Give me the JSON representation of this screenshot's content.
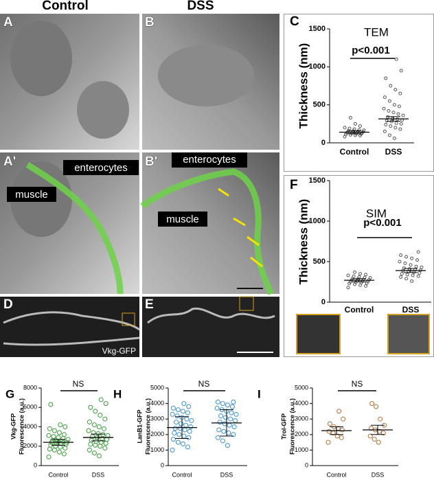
{
  "figure": {
    "headers": [
      "Control",
      "DSS"
    ],
    "panels": [
      "A",
      "B",
      "A'",
      "B'",
      "D",
      "E"
    ],
    "labels": [
      "enterocytes",
      "muscle",
      "enterocytes",
      "muscle",
      "Vkg-GFP"
    ]
  },
  "chart_data": [
    {
      "type": "strip",
      "panel": "C",
      "title": "TEM",
      "ylabel": [
        "Thickness (nm)"
      ],
      "annotation": "p<0.001",
      "categories": [
        "Control",
        "DSS"
      ],
      "color": "#555555",
      "values": [
        [
          80,
          95,
          100,
          105,
          110,
          115,
          120,
          125,
          130,
          130,
          135,
          140,
          140,
          145,
          150,
          155,
          160,
          165,
          170,
          180,
          190,
          200,
          220,
          250,
          330
        ],
        [
          60,
          100,
          150,
          180,
          200,
          220,
          240,
          250,
          260,
          280,
          290,
          300,
          310,
          320,
          340,
          360,
          380,
          400,
          420,
          450,
          480,
          500,
          550,
          600,
          650,
          700,
          750,
          850,
          950,
          1100
        ]
      ],
      "means": [
        140,
        315
      ],
      "errors": [
        20,
        30
      ],
      "ylim": [
        0,
        1500
      ],
      "yticks": [
        0,
        500,
        1000,
        1500
      ]
    },
    {
      "type": "strip",
      "panel": "F",
      "title": "SIM",
      "ylabel": [
        "Thickness (nm)"
      ],
      "annotation": "p<0.001",
      "categories": [
        "Control",
        "DSS"
      ],
      "color": "#555555",
      "values": [
        [
          180,
          200,
          210,
          220,
          230,
          235,
          240,
          245,
          250,
          255,
          260,
          265,
          270,
          275,
          280,
          285,
          290,
          300,
          305,
          310,
          320,
          330,
          340,
          350,
          370
        ],
        [
          260,
          290,
          310,
          320,
          330,
          340,
          350,
          360,
          370,
          380,
          390,
          395,
          400,
          410,
          420,
          430,
          440,
          460,
          480,
          500,
          520,
          540,
          560,
          580,
          620
        ]
      ],
      "means": [
        270,
        390
      ],
      "errors": [
        20,
        25
      ],
      "ylim": [
        0,
        1500
      ],
      "yticks": [
        0,
        500,
        1000,
        1500
      ]
    },
    {
      "type": "strip",
      "panel": "G",
      "ylabel": [
        "Vkg-GFP",
        "Fluorescence (a.u.)"
      ],
      "annotation": "NS",
      "categories": [
        "Control",
        "DSS"
      ],
      "color": "#3a9a3a",
      "values": [
        [
          900,
          1200,
          1400,
          1600,
          1700,
          1800,
          1900,
          2000,
          2100,
          2200,
          2300,
          2300,
          2400,
          2400,
          2500,
          2500,
          2600,
          2700,
          2800,
          2900,
          3000,
          3100,
          3200,
          3400,
          3600,
          3800,
          4000,
          4200,
          2600,
          6300
        ],
        [
          1000,
          1300,
          1600,
          1800,
          2000,
          2100,
          2200,
          2300,
          2400,
          2500,
          2600,
          2700,
          2800,
          2900,
          3000,
          3100,
          3200,
          3300,
          3400,
          3600,
          3800,
          4000,
          4200,
          4500,
          4800,
          5200,
          5600,
          6000,
          6400,
          6800
        ]
      ],
      "means": [
        2400,
        2900
      ],
      "errors": [
        300,
        350
      ],
      "ylim": [
        0,
        8000
      ],
      "yticks": [
        0,
        2000,
        4000,
        6000,
        8000
      ]
    },
    {
      "type": "strip",
      "panel": "H",
      "ylabel": [
        "LanB1-GFP",
        "Fluorescence (a.u.)"
      ],
      "annotation": "NS",
      "categories": [
        "Control",
        "DSS"
      ],
      "color": "#3a8fd0",
      "values": [
        [
          1000,
          1200,
          1400,
          1500,
          1700,
          1800,
          1900,
          2000,
          2100,
          2200,
          2300,
          2400,
          2400,
          2500,
          2600,
          2700,
          2800,
          2900,
          3000,
          3100,
          3200,
          3300,
          3400,
          3500,
          3600,
          3700,
          3800,
          4000
        ],
        [
          1300,
          1600,
          1800,
          2000,
          2100,
          2200,
          2300,
          2500,
          2600,
          2700,
          2800,
          2900,
          3000,
          3100,
          3200,
          3300,
          3400,
          3500,
          3600,
          3700,
          3800,
          3900,
          4000,
          4100,
          4100
        ]
      ],
      "means": [
        2450,
        2750
      ],
      "errors": [
        700,
        850
      ],
      "ylim": [
        0,
        5000
      ],
      "yticks": [
        0,
        1000,
        2000,
        3000,
        4000,
        5000
      ]
    },
    {
      "type": "strip",
      "panel": "I",
      "ylabel": [
        "Trol-GFP",
        "Fluorescence (a.u.)"
      ],
      "annotation": "NS",
      "categories": [
        "Control",
        "DSS"
      ],
      "color": "#b0703a",
      "values": [
        [
          1500,
          1800,
          1900,
          2100,
          2200,
          2300,
          2400,
          2500,
          2700,
          3000,
          3500
        ],
        [
          1500,
          1700,
          1900,
          2100,
          2200,
          2300,
          2400,
          2600,
          3000,
          3800,
          4000
        ]
      ],
      "means": [
        2250,
        2300
      ],
      "errors": [
        250,
        300
      ],
      "ylim": [
        0,
        5000
      ],
      "yticks": [
        0,
        1000,
        2000,
        3000,
        4000,
        5000
      ]
    }
  ]
}
